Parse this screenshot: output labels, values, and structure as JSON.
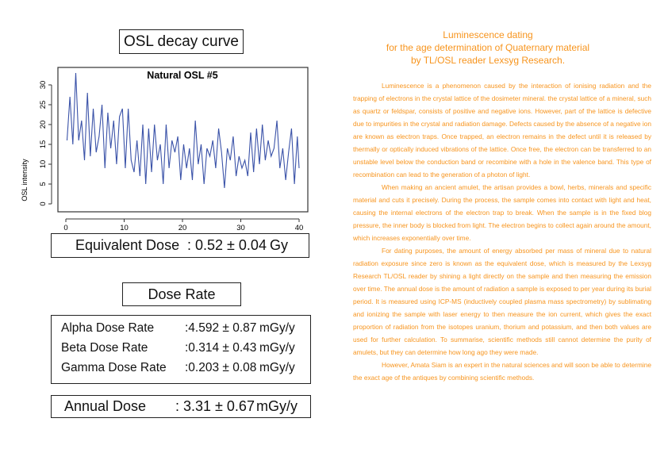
{
  "left": {
    "chart_box_title": "OSL decay curve",
    "equivalent_dose": {
      "label": "Equivalent Dose",
      "value": ": 0.52 ± 0.04",
      "unit": "Gy"
    },
    "dose_rate_title": "Dose Rate",
    "dose_rates": [
      {
        "name": "Alpha Dose Rate",
        "value": ":4.592 ± 0.87",
        "unit": "mGy/y"
      },
      {
        "name": "Beta Dose Rate",
        "value": ":0.314 ± 0.43",
        "unit": "mGy/y"
      },
      {
        "name": "Gamma Dose Rate",
        "value": ":0.203 ± 0.08",
        "unit": "mGy/y"
      }
    ],
    "annual_dose": {
      "label": "Annual Dose",
      "value": ": 3.31 ± 0.67",
      "unit": "mGy/y"
    }
  },
  "chart_data": {
    "type": "line",
    "title": "Natural OSL #5",
    "xlabel": "",
    "ylabel": "OSL intensity",
    "xlim": [
      0,
      40
    ],
    "ylim": [
      0,
      33
    ],
    "xticks": [
      0,
      10,
      20,
      30,
      40
    ],
    "yticks": [
      0,
      5,
      10,
      15,
      20,
      25,
      30
    ],
    "grid": false,
    "color": "#3a52a8",
    "x": [
      0.2,
      0.7,
      1.2,
      1.7,
      2.2,
      2.7,
      3.2,
      3.7,
      4.2,
      4.7,
      5.2,
      5.7,
      6.2,
      6.7,
      7.2,
      7.7,
      8.2,
      8.7,
      9.2,
      9.7,
      10.2,
      10.7,
      11.2,
      11.7,
      12.2,
      12.7,
      13.2,
      13.7,
      14.2,
      14.7,
      15.2,
      15.7,
      16.2,
      16.7,
      17.2,
      17.7,
      18.2,
      18.7,
      19.2,
      19.7,
      20.2,
      20.7,
      21.2,
      21.7,
      22.2,
      22.7,
      23.2,
      23.7,
      24.2,
      24.7,
      25.2,
      25.7,
      26.2,
      26.7,
      27.2,
      27.7,
      28.2,
      28.7,
      29.2,
      29.7,
      30.2,
      30.7,
      31.2,
      31.7,
      32.2,
      32.7,
      33.2,
      33.7,
      34.2,
      34.7,
      35.2,
      35.7,
      36.2,
      36.7,
      37.2,
      37.7,
      38.2,
      38.7,
      39.2,
      39.7,
      40.0
    ],
    "y": [
      16,
      27,
      15,
      33,
      16,
      21,
      11,
      28,
      12,
      24,
      13,
      17,
      25,
      9,
      23,
      14,
      21,
      10,
      22,
      24,
      9,
      24,
      11,
      8,
      16,
      7,
      20,
      5,
      19,
      8,
      20,
      11,
      15,
      5,
      20,
      9,
      16,
      13,
      17,
      6,
      15,
      9,
      14,
      6,
      21,
      10,
      15,
      5,
      14,
      12,
      16,
      9,
      19,
      13,
      4,
      14,
      11,
      17,
      7,
      12,
      9,
      11,
      7,
      18,
      8,
      19,
      10,
      20,
      11,
      16,
      12,
      14,
      21,
      9,
      14,
      6,
      13,
      19,
      5,
      17,
      9
    ]
  },
  "right": {
    "heading": [
      "Luminescence dating",
      "for the age determination of Quaternary material",
      "by TL/OSL reader Lexsyg Research."
    ],
    "paragraphs": [
      "Luminescence is a phenomenon caused by the interaction of ionising radiation and the trapping of electrons in the crystal lattice of the dosimeter mineral. the crystal lattice of a mineral, such as quartz or feldspar, consists of positive and negative ions. However, part of the lattice is defective due to impurities in the crystal and radiation damage. Defects caused by the absence of a negative ion are known as electron traps. Once trapped, an electron remains in the defect until it is released by thermally or optically induced vibrations of the lattice. Once free, the electron can be transferred to an unstable level below the conduction band or recombine with a hole in the valence band. This type of recombination can lead to the generation of a photon of light.",
      "When making an ancient amulet, the artisan provides a bowl, herbs, minerals and specific material and cuts it precisely. During the process, the sample comes into contact with light and heat, causing the internal electrons of the electron trap to break. When the sample is in the fixed blog pressure, the inner body is blocked from light. The electron begins to collect again around the amount, which increases exponentially over time.",
      "For dating purposes, the amount of energy absorbed per mass of mineral due to natural radiation exposure since zero is known as the equivalent dose, which is measured by the Lexsyg Research TL/OSL reader by shining a light directly on the sample and then measuring the emission over time. The annual dose is the amount of radiation a sample is exposed to per year during its burial period. It is measured using ICP-MS (inductively coupled plasma mass spectrometry) by sublimating and ionizing the sample with laser energy to then measure the ion current, which gives the exact proportion of radiation from the isotopes uranium, thorium and potassium, and then both values are used for further calculation. To summarise, scientific methods still cannot determine the purity of amulets, but they can determine how long ago they were made.",
      "However, Amata Siam is an expert in the natural sciences and will soon be able to determine the exact age of the antiques by combining scientific methods."
    ],
    "text_color": "#f7941d"
  }
}
